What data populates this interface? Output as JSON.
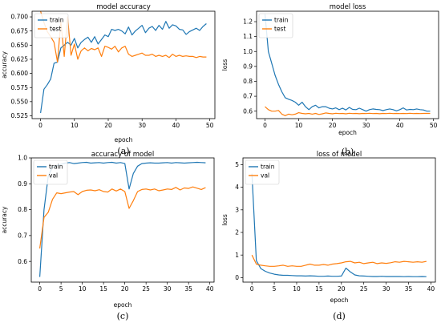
{
  "chart_data": [
    {
      "type": "line",
      "title": "model accuracy",
      "xlabel": "epoch",
      "ylabel": "accuracy",
      "caption": "(a)",
      "xlim": [
        -2.5,
        51.5
      ],
      "ylim": [
        0.52,
        0.71
      ],
      "xticks": [
        0,
        10,
        20,
        30,
        40,
        50
      ],
      "yticks": [
        0.525,
        0.55,
        0.575,
        0.6,
        0.625,
        0.65,
        0.675,
        0.7
      ],
      "yfmt": 3,
      "legend": "top-left",
      "series": [
        {
          "name": "train",
          "color": "#1f77b4",
          "values": [
            0.53,
            0.572,
            0.58,
            0.59,
            0.618,
            0.62,
            0.645,
            0.65,
            0.655,
            0.65,
            0.662,
            0.645,
            0.655,
            0.66,
            0.664,
            0.655,
            0.665,
            0.652,
            0.66,
            0.668,
            0.665,
            0.678,
            0.676,
            0.678,
            0.675,
            0.67,
            0.682,
            0.668,
            0.675,
            0.68,
            0.685,
            0.672,
            0.68,
            0.683,
            0.676,
            0.685,
            0.678,
            0.692,
            0.68,
            0.686,
            0.684,
            0.678,
            0.677,
            0.669,
            0.674,
            0.677,
            0.68,
            0.676,
            0.683,
            0.688
          ]
        },
        {
          "name": "test",
          "color": "#ff7f0e",
          "values": [
            0.71,
            0.69,
            0.674,
            0.665,
            0.655,
            0.62,
            0.692,
            0.63,
            0.7,
            0.632,
            0.652,
            0.625,
            0.64,
            0.645,
            0.64,
            0.644,
            0.642,
            0.645,
            0.63,
            0.648,
            0.646,
            0.643,
            0.648,
            0.638,
            0.645,
            0.648,
            0.634,
            0.63,
            0.632,
            0.634,
            0.636,
            0.632,
            0.632,
            0.634,
            0.63,
            0.632,
            0.63,
            0.632,
            0.628,
            0.634,
            0.63,
            0.632,
            0.63,
            0.631,
            0.63,
            0.63,
            0.628,
            0.63,
            0.629,
            0.629
          ]
        }
      ]
    },
    {
      "type": "line",
      "title": "model loss",
      "xlabel": "epoch",
      "ylabel": "loss",
      "caption": "(b)",
      "xlim": [
        -2.5,
        51.5
      ],
      "ylim": [
        0.55,
        1.27
      ],
      "xticks": [
        0,
        10,
        20,
        30,
        40,
        50
      ],
      "yticks": [
        0.6,
        0.7,
        0.8,
        0.9,
        1.0,
        1.1,
        1.2
      ],
      "yfmt": 1,
      "legend": "top-left",
      "series": [
        {
          "name": "train",
          "color": "#1f77b4",
          "values": [
            1.25,
            1.0,
            0.92,
            0.84,
            0.78,
            0.73,
            0.69,
            0.68,
            0.672,
            0.66,
            0.64,
            0.66,
            0.63,
            0.61,
            0.63,
            0.64,
            0.622,
            0.63,
            0.63,
            0.62,
            0.615,
            0.622,
            0.61,
            0.62,
            0.608,
            0.625,
            0.612,
            0.61,
            0.62,
            0.61,
            0.6,
            0.61,
            0.615,
            0.612,
            0.61,
            0.604,
            0.61,
            0.615,
            0.61,
            0.602,
            0.61,
            0.622,
            0.608,
            0.612,
            0.61,
            0.615,
            0.61,
            0.608,
            0.6,
            0.6
          ]
        },
        {
          "name": "test",
          "color": "#ff7f0e",
          "values": [
            0.63,
            0.61,
            0.6,
            0.6,
            0.605,
            0.58,
            0.57,
            0.58,
            0.576,
            0.58,
            0.59,
            0.585,
            0.582,
            0.585,
            0.58,
            0.585,
            0.578,
            0.582,
            0.588,
            0.585,
            0.582,
            0.586,
            0.584,
            0.585,
            0.582,
            0.586,
            0.584,
            0.585,
            0.583,
            0.585,
            0.584,
            0.586,
            0.584,
            0.585,
            0.583,
            0.585,
            0.584,
            0.586,
            0.584,
            0.585,
            0.584,
            0.585,
            0.584,
            0.586,
            0.584,
            0.585,
            0.584,
            0.585,
            0.585,
            0.585
          ]
        }
      ]
    },
    {
      "type": "line",
      "title": "accuracy of model",
      "xlabel": "epoch",
      "ylabel": "accuracy",
      "caption": "(c)",
      "xlim": [
        -2,
        41
      ],
      "ylim": [
        0.52,
        1.0
      ],
      "xticks": [
        0,
        5,
        10,
        15,
        20,
        25,
        30,
        35,
        40
      ],
      "yticks": [
        0.6,
        0.7,
        0.8,
        0.9,
        1.0
      ],
      "yfmt": 1,
      "legend": "top-left",
      "series": [
        {
          "name": "train",
          "color": "#1f77b4",
          "values": [
            0.54,
            0.8,
            0.93,
            0.965,
            0.97,
            0.975,
            0.98,
            0.982,
            0.978,
            0.98,
            0.982,
            0.983,
            0.98,
            0.981,
            0.982,
            0.98,
            0.982,
            0.983,
            0.98,
            0.982,
            0.978,
            0.88,
            0.94,
            0.968,
            0.978,
            0.98,
            0.981,
            0.98,
            0.98,
            0.981,
            0.982,
            0.98,
            0.982,
            0.981,
            0.98,
            0.981,
            0.982,
            0.983,
            0.982,
            0.981
          ]
        },
        {
          "name": "val",
          "color": "#ff7f0e",
          "values": [
            0.65,
            0.77,
            0.79,
            0.84,
            0.865,
            0.862,
            0.865,
            0.868,
            0.87,
            0.858,
            0.87,
            0.875,
            0.876,
            0.873,
            0.877,
            0.87,
            0.868,
            0.88,
            0.872,
            0.88,
            0.87,
            0.805,
            0.835,
            0.87,
            0.878,
            0.88,
            0.876,
            0.88,
            0.873,
            0.876,
            0.88,
            0.878,
            0.886,
            0.876,
            0.884,
            0.882,
            0.888,
            0.883,
            0.878,
            0.885
          ]
        }
      ]
    },
    {
      "type": "line",
      "title": "loss of model",
      "xlabel": "epoch",
      "ylabel": "loss",
      "caption": "(d)",
      "xlim": [
        -2,
        41
      ],
      "ylim": [
        -0.2,
        5.3
      ],
      "xticks": [
        0,
        5,
        10,
        15,
        20,
        25,
        30,
        35,
        40
      ],
      "yticks": [
        0,
        1,
        2,
        3,
        4,
        5
      ],
      "yfmt": 0,
      "legend": "top-left",
      "series": [
        {
          "name": "train",
          "color": "#1f77b4",
          "values": [
            4.6,
            0.75,
            0.4,
            0.28,
            0.2,
            0.15,
            0.12,
            0.1,
            0.1,
            0.09,
            0.08,
            0.08,
            0.07,
            0.08,
            0.07,
            0.06,
            0.06,
            0.07,
            0.06,
            0.06,
            0.07,
            0.42,
            0.25,
            0.12,
            0.08,
            0.07,
            0.06,
            0.05,
            0.05,
            0.06,
            0.05,
            0.05,
            0.05,
            0.05,
            0.04,
            0.05,
            0.04,
            0.04,
            0.05,
            0.04
          ]
        },
        {
          "name": "val",
          "color": "#ff7f0e",
          "values": [
            1.0,
            0.6,
            0.55,
            0.52,
            0.5,
            0.5,
            0.52,
            0.55,
            0.5,
            0.52,
            0.5,
            0.5,
            0.55,
            0.6,
            0.55,
            0.55,
            0.58,
            0.55,
            0.6,
            0.62,
            0.65,
            0.7,
            0.72,
            0.65,
            0.68,
            0.62,
            0.65,
            0.68,
            0.62,
            0.65,
            0.63,
            0.66,
            0.7,
            0.68,
            0.72,
            0.7,
            0.68,
            0.7,
            0.68,
            0.72
          ]
        }
      ]
    }
  ]
}
